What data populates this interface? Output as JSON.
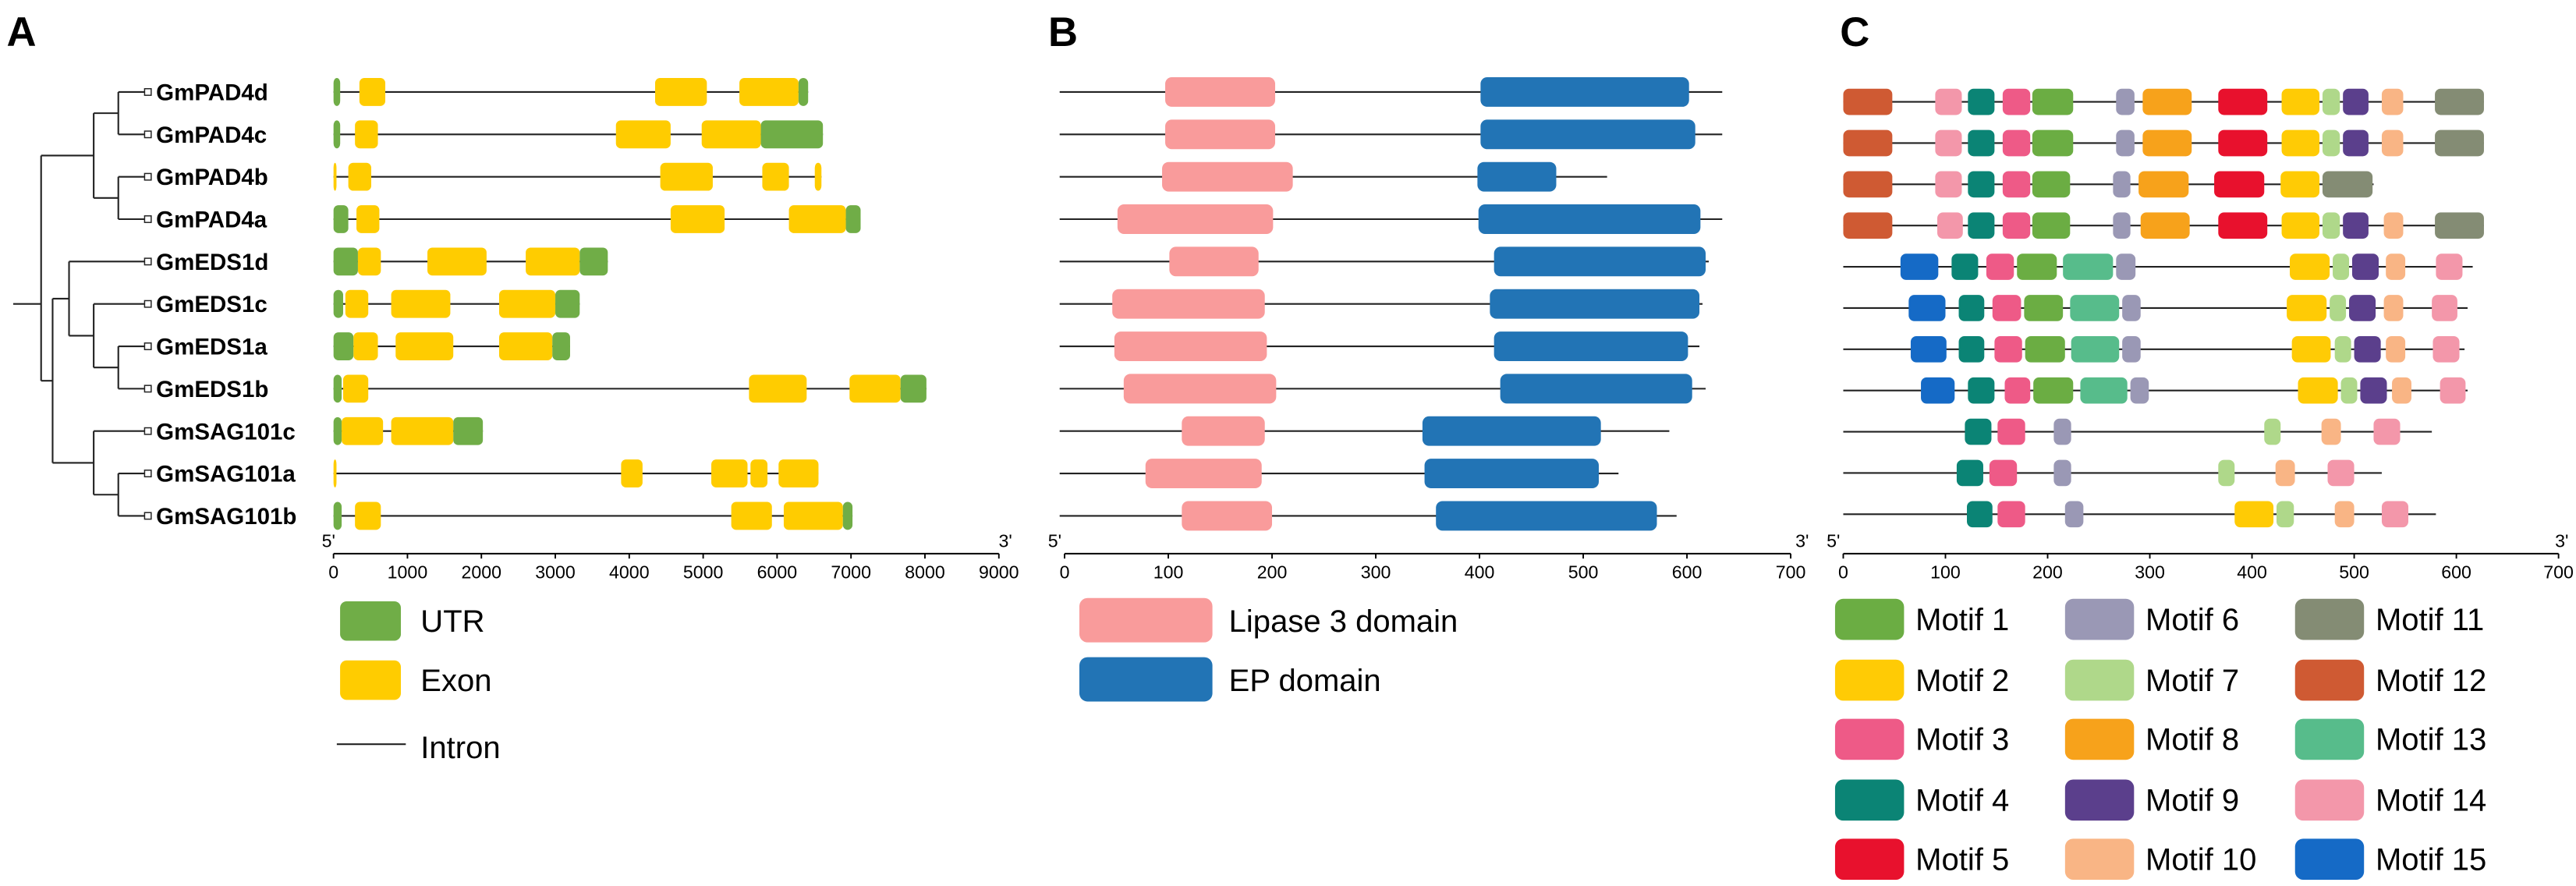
{
  "genes": [
    "GmPAD4d",
    "GmPAD4c",
    "GmPAD4b",
    "GmPAD4a",
    "GmEDS1d",
    "GmEDS1c",
    "GmEDS1a",
    "GmEDS1b",
    "GmSAG101c",
    "GmSAG101a",
    "GmSAG101b"
  ],
  "tree": [
    [
      [
        "GmPAD4d",
        "GmPAD4c"
      ],
      [
        "GmPAD4b",
        "GmPAD4a"
      ]
    ],
    [
      [
        "GmEDS1d",
        [
          "GmEDS1c",
          [
            "GmEDS1a",
            "GmEDS1b"
          ]
        ]
      ],
      [
        "GmSAG101c",
        [
          "GmSAG101a",
          "GmSAG101b"
        ]
      ]
    ]
  ],
  "panel_a": {
    "letter": "A",
    "axis": {
      "start_label": "5'",
      "end_label": "3'",
      "min": 0,
      "max": 9000,
      "ticks": [
        0,
        1000,
        2000,
        3000,
        4000,
        5000,
        6000,
        7000,
        8000,
        9000
      ]
    },
    "colors": {
      "UTR": "#70AD47",
      "Exon": "#FFCC00",
      "Intron": "#000000"
    },
    "legend": [
      "UTR",
      "Exon",
      "Intron"
    ],
    "structures": [
      {
        "length": 6420,
        "features": [
          [
            "UTR",
            0,
            90
          ],
          [
            "Exon",
            350,
            700
          ],
          [
            "Exon",
            4350,
            5050
          ],
          [
            "Exon",
            5490,
            6290
          ],
          [
            "UTR",
            6290,
            6420
          ]
        ]
      },
      {
        "length": 6620,
        "features": [
          [
            "UTR",
            0,
            90
          ],
          [
            "Exon",
            290,
            600
          ],
          [
            "Exon",
            3820,
            4560
          ],
          [
            "Exon",
            4980,
            5780
          ],
          [
            "UTR",
            5780,
            6620
          ]
        ]
      },
      {
        "length": 6600,
        "features": [
          [
            "Exon",
            0,
            40
          ],
          [
            "Exon",
            200,
            510
          ],
          [
            "Exon",
            4420,
            5130
          ],
          [
            "Exon",
            5800,
            6160
          ],
          [
            "Exon",
            6510,
            6600
          ]
        ]
      },
      {
        "length": 7130,
        "features": [
          [
            "UTR",
            0,
            200
          ],
          [
            "Exon",
            310,
            620
          ],
          [
            "Exon",
            4560,
            5290
          ],
          [
            "Exon",
            6160,
            6930
          ],
          [
            "UTR",
            6930,
            7130
          ]
        ]
      },
      {
        "length": 3710,
        "features": [
          [
            "UTR",
            0,
            330
          ],
          [
            "Exon",
            330,
            640
          ],
          [
            "Exon",
            1270,
            2070
          ],
          [
            "Exon",
            2600,
            3330
          ],
          [
            "UTR",
            3330,
            3710
          ]
        ]
      },
      {
        "length": 3330,
        "features": [
          [
            "UTR",
            0,
            130
          ],
          [
            "Exon",
            160,
            470
          ],
          [
            "Exon",
            780,
            1580
          ],
          [
            "Exon",
            2240,
            3000
          ],
          [
            "UTR",
            3000,
            3330
          ]
        ]
      },
      {
        "length": 3200,
        "features": [
          [
            "UTR",
            0,
            270
          ],
          [
            "Exon",
            270,
            600
          ],
          [
            "Exon",
            840,
            1620
          ],
          [
            "Exon",
            2240,
            2960
          ],
          [
            "UTR",
            2960,
            3200
          ]
        ]
      },
      {
        "length": 8020,
        "features": [
          [
            "UTR",
            0,
            110
          ],
          [
            "Exon",
            130,
            470
          ],
          [
            "Exon",
            5620,
            6400
          ],
          [
            "Exon",
            6980,
            7670
          ],
          [
            "UTR",
            7670,
            8020
          ]
        ]
      },
      {
        "length": 2020,
        "features": [
          [
            "UTR",
            0,
            110
          ],
          [
            "Exon",
            110,
            670
          ],
          [
            "Exon",
            780,
            1620
          ],
          [
            "UTR",
            1620,
            2020
          ]
        ]
      },
      {
        "length": 6560,
        "features": [
          [
            "Exon",
            0,
            40
          ],
          [
            "Exon",
            3890,
            4180
          ],
          [
            "Exon",
            5110,
            5600
          ],
          [
            "Exon",
            5640,
            5870
          ],
          [
            "Exon",
            6020,
            6560
          ]
        ]
      },
      {
        "length": 7020,
        "features": [
          [
            "UTR",
            0,
            110
          ],
          [
            "Exon",
            290,
            640
          ],
          [
            "Exon",
            5380,
            5930
          ],
          [
            "Exon",
            6090,
            6890
          ],
          [
            "UTR",
            6890,
            7020
          ]
        ]
      }
    ]
  },
  "panel_b": {
    "letter": "B",
    "axis": {
      "start_label": "5'",
      "end_label": "3'",
      "min": 0,
      "max": 700,
      "ticks": [
        0,
        100,
        200,
        300,
        400,
        500,
        600,
        700
      ]
    },
    "colors": {
      "Lipase 3 domain": "#F99B9B",
      "EP domain": "#2274B5"
    },
    "legend": [
      "Lipase 3 domain",
      "EP domain"
    ],
    "proteins": [
      {
        "length": 634,
        "domains": [
          [
            "Lipase 3 domain",
            97,
            203
          ],
          [
            "EP domain",
            401,
            602
          ]
        ]
      },
      {
        "length": 634,
        "domains": [
          [
            "Lipase 3 domain",
            97,
            203
          ],
          [
            "EP domain",
            401,
            608
          ]
        ]
      },
      {
        "length": 523,
        "domains": [
          [
            "Lipase 3 domain",
            94,
            220
          ],
          [
            "EP domain",
            398,
            474
          ]
        ]
      },
      {
        "length": 634,
        "domains": [
          [
            "Lipase 3 domain",
            51,
            201
          ],
          [
            "EP domain",
            399,
            613
          ]
        ]
      },
      {
        "length": 621,
        "domains": [
          [
            "Lipase 3 domain",
            101,
            187
          ],
          [
            "EP domain",
            414,
            618
          ]
        ]
      },
      {
        "length": 615,
        "domains": [
          [
            "Lipase 3 domain",
            46,
            193
          ],
          [
            "EP domain",
            410,
            612
          ]
        ]
      },
      {
        "length": 612,
        "domains": [
          [
            "Lipase 3 domain",
            48,
            195
          ],
          [
            "EP domain",
            414,
            601
          ]
        ]
      },
      {
        "length": 618,
        "domains": [
          [
            "Lipase 3 domain",
            57,
            204
          ],
          [
            "EP domain",
            420,
            605
          ]
        ]
      },
      {
        "length": 583,
        "domains": [
          [
            "Lipase 3 domain",
            113,
            193
          ],
          [
            "EP domain",
            345,
            517
          ]
        ]
      },
      {
        "length": 534,
        "domains": [
          [
            "Lipase 3 domain",
            78,
            190
          ],
          [
            "EP domain",
            347,
            515
          ]
        ]
      },
      {
        "length": 590,
        "domains": [
          [
            "Lipase 3 domain",
            113,
            200
          ],
          [
            "EP domain",
            358,
            571
          ]
        ]
      }
    ]
  },
  "panel_c": {
    "letter": "C",
    "axis": {
      "start_label": "5'",
      "end_label": "3'",
      "min": 0,
      "max": 700,
      "ticks": [
        0,
        100,
        200,
        300,
        400,
        500,
        600,
        700
      ]
    },
    "colors": {
      "1": "#6BAD43",
      "2": "#FFCB05",
      "3": "#EE5A87",
      "4": "#0B8475",
      "5": "#E8112D",
      "6": "#9A98B5",
      "7": "#AFD88A",
      "8": "#F7A21B",
      "9": "#5B3F8C",
      "10": "#F9B585",
      "11": "#848C74",
      "12": "#CF5A33",
      "13": "#57BC8B",
      "14": "#F397AA",
      "15": "#156AC6"
    },
    "legend": [
      {
        "motif": 1,
        "label": "Motif 1"
      },
      {
        "motif": 2,
        "label": "Motif 2"
      },
      {
        "motif": 3,
        "label": "Motif 3"
      },
      {
        "motif": 4,
        "label": "Motif 4"
      },
      {
        "motif": 5,
        "label": "Motif 5"
      },
      {
        "motif": 6,
        "label": "Motif 6"
      },
      {
        "motif": 7,
        "label": "Motif 7"
      },
      {
        "motif": 8,
        "label": "Motif 8"
      },
      {
        "motif": 9,
        "label": "Motif 9"
      },
      {
        "motif": 10,
        "label": "Motif 10"
      },
      {
        "motif": 11,
        "label": "Motif 11"
      },
      {
        "motif": 12,
        "label": "Motif 12"
      },
      {
        "motif": 13,
        "label": "Motif 13"
      },
      {
        "motif": 14,
        "label": "Motif 14"
      },
      {
        "motif": 15,
        "label": "Motif 15"
      }
    ],
    "proteins": [
      {
        "length": 627,
        "motifs": [
          [
            12,
            0,
            48
          ],
          [
            14,
            90,
            116
          ],
          [
            4,
            122,
            148
          ],
          [
            3,
            156,
            183
          ],
          [
            1,
            185,
            225
          ],
          [
            6,
            267,
            285
          ],
          [
            8,
            293,
            341
          ],
          [
            5,
            367,
            415
          ],
          [
            2,
            429,
            466
          ],
          [
            7,
            469,
            486
          ],
          [
            9,
            489,
            514
          ],
          [
            10,
            527,
            548
          ],
          [
            11,
            579,
            627
          ]
        ]
      },
      {
        "length": 627,
        "motifs": [
          [
            12,
            0,
            48
          ],
          [
            14,
            90,
            116
          ],
          [
            4,
            122,
            148
          ],
          [
            3,
            156,
            183
          ],
          [
            1,
            185,
            225
          ],
          [
            6,
            267,
            285
          ],
          [
            8,
            293,
            341
          ],
          [
            5,
            367,
            415
          ],
          [
            2,
            429,
            466
          ],
          [
            7,
            469,
            486
          ],
          [
            9,
            489,
            514
          ],
          [
            10,
            527,
            548
          ],
          [
            11,
            579,
            627
          ]
        ]
      },
      {
        "length": 519,
        "motifs": [
          [
            12,
            0,
            48
          ],
          [
            14,
            90,
            116
          ],
          [
            4,
            122,
            148
          ],
          [
            3,
            156,
            183
          ],
          [
            1,
            185,
            222
          ],
          [
            6,
            264,
            281
          ],
          [
            8,
            289,
            338
          ],
          [
            5,
            363,
            412
          ],
          [
            2,
            428,
            466
          ],
          [
            11,
            469,
            518
          ]
        ]
      },
      {
        "length": 627,
        "motifs": [
          [
            12,
            0,
            48
          ],
          [
            14,
            92,
            117
          ],
          [
            4,
            122,
            148
          ],
          [
            3,
            156,
            183
          ],
          [
            1,
            185,
            222
          ],
          [
            6,
            264,
            281
          ],
          [
            8,
            291,
            339
          ],
          [
            5,
            367,
            415
          ],
          [
            2,
            429,
            466
          ],
          [
            7,
            469,
            486
          ],
          [
            9,
            489,
            514
          ],
          [
            10,
            529,
            548
          ],
          [
            11,
            579,
            627
          ]
        ]
      },
      {
        "length": 616,
        "motifs": [
          [
            15,
            56,
            93
          ],
          [
            4,
            106,
            132
          ],
          [
            3,
            140,
            167
          ],
          [
            1,
            170,
            209
          ],
          [
            13,
            215,
            264
          ],
          [
            6,
            267,
            286
          ],
          [
            2,
            437,
            476
          ],
          [
            7,
            479,
            495
          ],
          [
            9,
            498,
            524
          ],
          [
            10,
            531,
            550
          ],
          [
            14,
            580,
            606
          ]
        ]
      },
      {
        "length": 611,
        "motifs": [
          [
            15,
            64,
            100
          ],
          [
            4,
            113,
            138
          ],
          [
            3,
            146,
            174
          ],
          [
            1,
            177,
            215
          ],
          [
            13,
            222,
            270
          ],
          [
            6,
            273,
            291
          ],
          [
            2,
            434,
            473
          ],
          [
            7,
            476,
            492
          ],
          [
            9,
            495,
            521
          ],
          [
            10,
            529,
            548
          ],
          [
            14,
            576,
            601
          ]
        ]
      },
      {
        "length": 608,
        "motifs": [
          [
            15,
            66,
            101
          ],
          [
            4,
            113,
            138
          ],
          [
            3,
            148,
            175
          ],
          [
            1,
            178,
            217
          ],
          [
            13,
            223,
            270
          ],
          [
            6,
            273,
            291
          ],
          [
            2,
            439,
            477
          ],
          [
            7,
            481,
            497
          ],
          [
            9,
            500,
            526
          ],
          [
            10,
            531,
            550
          ],
          [
            14,
            577,
            603
          ]
        ]
      },
      {
        "length": 611,
        "motifs": [
          [
            15,
            76,
            109
          ],
          [
            4,
            122,
            148
          ],
          [
            3,
            158,
            183
          ],
          [
            1,
            186,
            225
          ],
          [
            13,
            232,
            278
          ],
          [
            6,
            281,
            299
          ],
          [
            2,
            445,
            484
          ],
          [
            7,
            487,
            503
          ],
          [
            9,
            506,
            532
          ],
          [
            10,
            537,
            556
          ],
          [
            14,
            584,
            609
          ]
        ]
      },
      {
        "length": 576,
        "motifs": [
          [
            4,
            119,
            145
          ],
          [
            3,
            151,
            178
          ],
          [
            6,
            206,
            223
          ],
          [
            7,
            412,
            428
          ],
          [
            10,
            468,
            487
          ],
          [
            14,
            519,
            545
          ]
        ]
      },
      {
        "length": 527,
        "motifs": [
          [
            4,
            111,
            137
          ],
          [
            3,
            143,
            170
          ],
          [
            6,
            206,
            223
          ],
          [
            7,
            367,
            383
          ],
          [
            10,
            423,
            442
          ],
          [
            14,
            474,
            500
          ]
        ]
      },
      {
        "length": 580,
        "motifs": [
          [
            4,
            121,
            146
          ],
          [
            3,
            151,
            178
          ],
          [
            6,
            217,
            235
          ],
          [
            2,
            383,
            421
          ],
          [
            7,
            424,
            441
          ],
          [
            10,
            481,
            500
          ],
          [
            14,
            527,
            553
          ]
        ]
      }
    ]
  }
}
